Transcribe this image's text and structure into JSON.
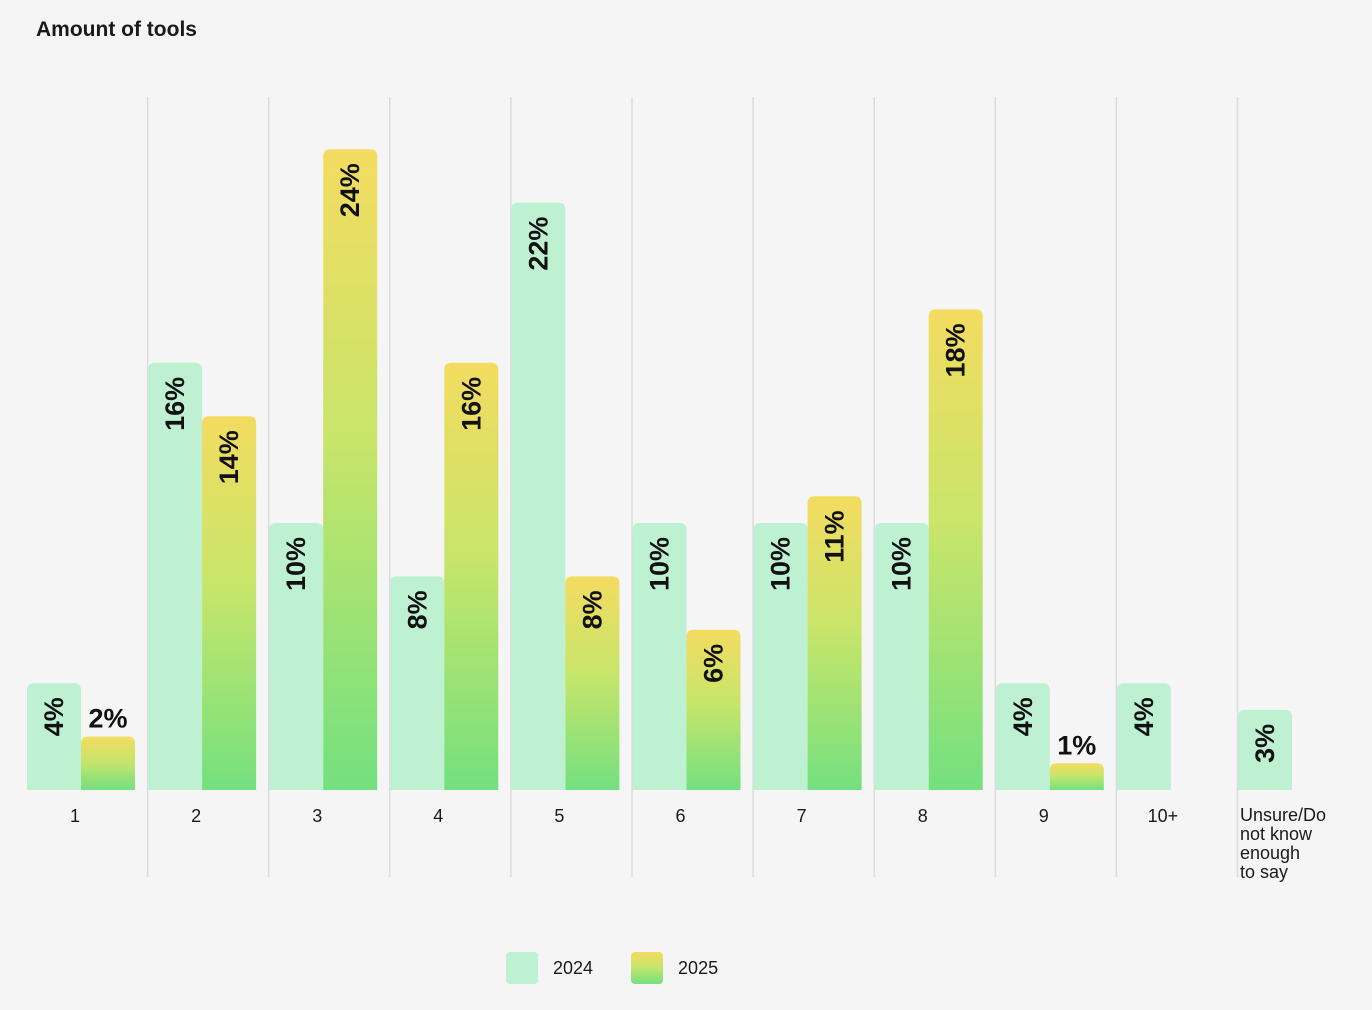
{
  "title": "Amount of tools",
  "colors": {
    "background": "#f5f5f5",
    "grid": "#dcdcdc",
    "series_2024": "#bdf1d1",
    "series_2025_top": "#f3dc60",
    "series_2025_mid": "#c8e56a",
    "series_2025_bottom": "#74e07f"
  },
  "chart_data": {
    "type": "bar",
    "title": "Amount of tools",
    "xlabel": "",
    "ylabel": "",
    "ylim": [
      0,
      25
    ],
    "grid": true,
    "legend_placement": "bottom-center",
    "categories": [
      "1",
      "2",
      "3",
      "4",
      "5",
      "6",
      "7",
      "8",
      "9",
      "10+",
      "Unsure/Do not know enough to say"
    ],
    "category_lines": [
      [
        "1"
      ],
      [
        "2"
      ],
      [
        "3"
      ],
      [
        "4"
      ],
      [
        "5"
      ],
      [
        "6"
      ],
      [
        "7"
      ],
      [
        "8"
      ],
      [
        "9"
      ],
      [
        "10+"
      ],
      [
        "Unsure/Do",
        "not know",
        "enough",
        "to say"
      ]
    ],
    "series": [
      {
        "name": "2024",
        "values": [
          4,
          16,
          10,
          8,
          22,
          10,
          10,
          10,
          4,
          4,
          3
        ],
        "labels": [
          "4%",
          "16%",
          "10%",
          "8%",
          "22%",
          "10%",
          "10%",
          "10%",
          "4%",
          "4%",
          "3%"
        ]
      },
      {
        "name": "2025",
        "values": [
          2,
          14,
          24,
          16,
          8,
          6,
          11,
          18,
          1,
          null,
          null
        ],
        "labels": [
          "2%",
          "14%",
          "24%",
          "16%",
          "8%",
          "6%",
          "11%",
          "18%",
          "1%",
          null,
          null
        ]
      }
    ]
  },
  "legend": {
    "items": [
      {
        "label": "2024"
      },
      {
        "label": "2025"
      }
    ]
  }
}
